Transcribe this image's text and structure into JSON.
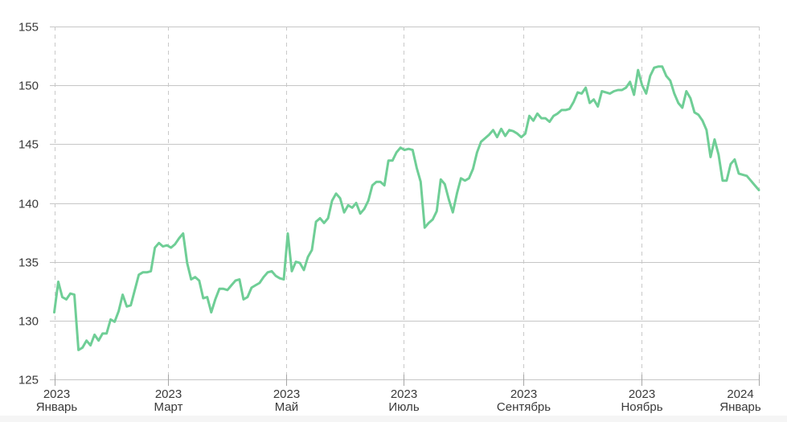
{
  "widget": {
    "background": "#ffffff",
    "footer_strip_color": "#f5f5f5"
  },
  "chart_data": {
    "type": "line",
    "title": "",
    "legend": "none",
    "grid": true,
    "x_axis": {
      "range_days": [
        0,
        365
      ],
      "gridline_style": "dashed",
      "ticks": [
        {
          "day": 0,
          "year": "2023",
          "month": "Январь"
        },
        {
          "day": 59,
          "year": "2023",
          "month": "Март"
        },
        {
          "day": 120,
          "year": "2023",
          "month": "Май"
        },
        {
          "day": 181,
          "year": "2023",
          "month": "Июль"
        },
        {
          "day": 243,
          "year": "2023",
          "month": "Сентябрь"
        },
        {
          "day": 304,
          "year": "2023",
          "month": "Ноябрь"
        },
        {
          "day": 365,
          "year": "2024",
          "month": "Январь"
        }
      ]
    },
    "y_axis": {
      "range": [
        125,
        155
      ],
      "ticks": [
        125,
        130,
        135,
        140,
        145,
        150,
        155
      ],
      "tick_labels": [
        "125",
        "130",
        "135",
        "140",
        "145",
        "150",
        "155"
      ]
    },
    "colors": {
      "series": "#6FCE96",
      "gridline": "#c6c6c6",
      "dashed_gridline": "#c9c9c9",
      "tick_mark": "#a6a6a6",
      "tick_text": "#3a3a3a"
    },
    "series": [
      {
        "name": "price",
        "color": "#6FCE96",
        "stroke_width": 3,
        "points_evenly_spaced_over_range": true,
        "values": [
          130.7,
          133.3,
          132.0,
          131.8,
          132.3,
          132.2,
          127.5,
          127.7,
          128.3,
          127.9,
          128.8,
          128.3,
          128.9,
          128.9,
          130.1,
          129.9,
          130.8,
          132.2,
          131.2,
          131.3,
          132.6,
          133.9,
          134.1,
          134.1,
          134.2,
          136.2,
          136.6,
          136.3,
          136.4,
          136.2,
          136.5,
          137.0,
          137.4,
          134.9,
          133.5,
          133.7,
          133.4,
          131.9,
          132.0,
          130.7,
          131.8,
          132.7,
          132.7,
          132.6,
          133.0,
          133.4,
          133.5,
          131.8,
          132.0,
          132.8,
          133.0,
          133.2,
          133.7,
          134.1,
          134.2,
          133.8,
          133.6,
          133.5,
          137.4,
          134.2,
          135.0,
          134.9,
          134.3,
          135.4,
          136.0,
          138.4,
          138.7,
          138.3,
          138.7,
          140.2,
          140.8,
          140.4,
          139.2,
          139.8,
          139.6,
          140.0,
          139.1,
          139.5,
          140.2,
          141.5,
          141.8,
          141.8,
          141.5,
          143.6,
          143.6,
          144.3,
          144.7,
          144.5,
          144.6,
          144.5,
          143.0,
          141.8,
          137.9,
          138.3,
          138.6,
          139.3,
          142.0,
          141.6,
          140.3,
          139.2,
          140.8,
          142.1,
          141.9,
          142.1,
          142.9,
          144.3,
          145.2,
          145.5,
          145.8,
          146.2,
          145.6,
          146.3,
          145.7,
          146.2,
          146.1,
          145.9,
          145.6,
          145.9,
          147.4,
          147.0,
          147.6,
          147.2,
          147.2,
          146.9,
          147.4,
          147.6,
          147.9,
          147.9,
          148.0,
          148.6,
          149.4,
          149.3,
          149.8,
          148.5,
          148.8,
          148.2,
          149.5,
          149.4,
          149.3,
          149.5,
          149.6,
          149.6,
          149.8,
          150.3,
          149.2,
          151.3,
          150.0,
          149.3,
          150.8,
          151.5,
          151.6,
          151.6,
          150.8,
          150.4,
          149.3,
          148.5,
          148.1,
          149.5,
          148.9,
          147.7,
          147.5,
          147.0,
          146.2,
          143.9,
          145.4,
          144.1,
          141.9,
          141.9,
          143.3,
          143.7,
          142.5,
          142.4,
          142.3,
          141.9,
          141.5,
          141.1
        ]
      }
    ]
  }
}
